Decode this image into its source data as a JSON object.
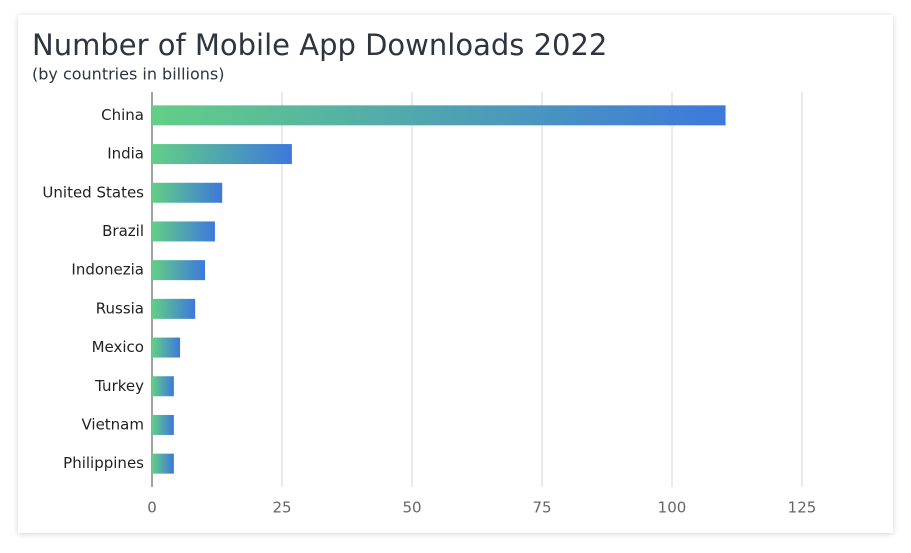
{
  "chart_data": {
    "type": "bar",
    "orientation": "horizontal",
    "title": "Number of Mobile App Downloads 2022",
    "subtitle": "(by countries in billions)",
    "categories": [
      "China",
      "India",
      "United States",
      "Brazil",
      "Indonezia",
      "Russia",
      "Mexico",
      "Turkey",
      "Vietnam",
      "Philippines"
    ],
    "values": [
      110.3,
      26.9,
      13.5,
      12.1,
      10.2,
      8.3,
      5.4,
      4.2,
      4.2,
      4.2
    ],
    "gradient": [
      "#62cf86",
      "#3d78dc"
    ],
    "xlim": [
      0,
      142.5
    ],
    "xticks": [
      0,
      25,
      50,
      75,
      100,
      125
    ],
    "grid": true
  }
}
